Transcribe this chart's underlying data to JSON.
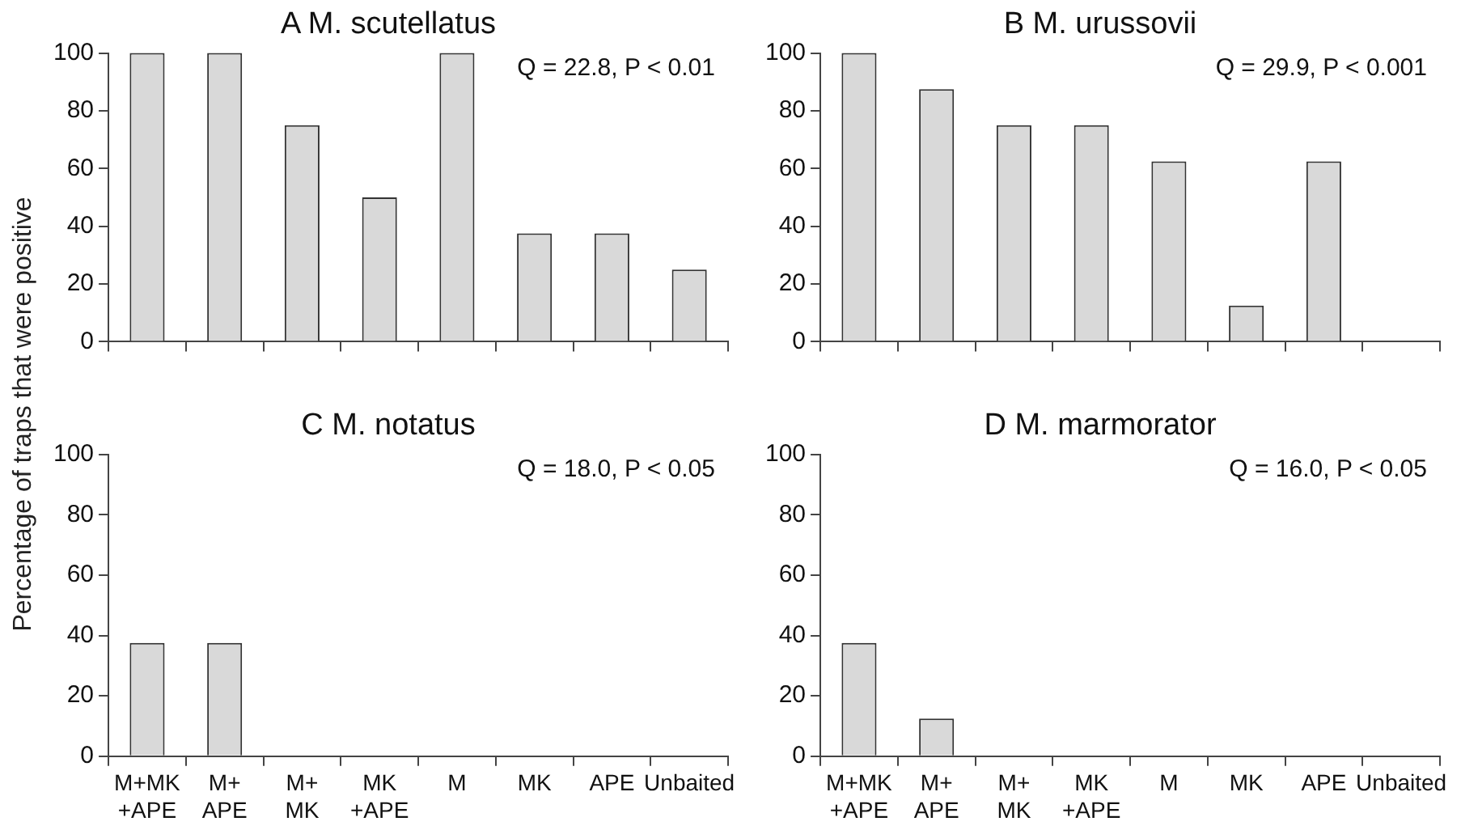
{
  "chart_data": [
    {
      "type": "bar",
      "title": "A M. scutellatus",
      "ylabel": "Percentage of traps that were positive",
      "categories": [
        null,
        null,
        null,
        null,
        null,
        null,
        null,
        null
      ],
      "values": [
        100,
        100,
        75,
        50,
        100,
        37.5,
        37.5,
        25
      ],
      "color": "#d9d9d9",
      "ylim": [
        0,
        100
      ],
      "yticks": [
        0,
        20,
        40,
        60,
        80,
        100
      ],
      "grid": false,
      "legend": false,
      "annotations": [
        "Q = 22.8, P < 0.01"
      ]
    },
    {
      "type": "bar",
      "title": "B M. urussovii",
      "categories": [
        null,
        null,
        null,
        null,
        null,
        null,
        null,
        null
      ],
      "values": [
        100,
        87.5,
        75,
        75,
        62.5,
        12.5,
        62.5,
        0
      ],
      "color": "#d9d9d9",
      "ylim": [
        0,
        100
      ],
      "yticks": [
        0,
        20,
        40,
        60,
        80,
        100
      ],
      "grid": false,
      "legend": false,
      "annotations": [
        "Q = 29.9, P < 0.001"
      ]
    },
    {
      "type": "bar",
      "title": "C M. notatus",
      "categories": [
        "M+MK +APE",
        "M+ APE",
        "M+ MK",
        "MK +APE",
        "M",
        "MK",
        "APE",
        "Unbaited"
      ],
      "values": [
        37.5,
        37.5,
        0,
        0,
        0,
        0,
        0,
        0
      ],
      "color": "#d9d9d9",
      "ylim": [
        0,
        100
      ],
      "yticks": [
        0,
        20,
        40,
        60,
        80,
        100
      ],
      "grid": false,
      "legend": false,
      "annotations": [
        "Q = 18.0, P < 0.05"
      ]
    },
    {
      "type": "bar",
      "title": "D M. marmorator",
      "categories": [
        "M+MK +APE",
        "M+ APE",
        "M+ MK",
        "MK +APE",
        "M",
        "MK",
        "APE",
        "Unbaited"
      ],
      "values": [
        37.5,
        12.5,
        0,
        0,
        0,
        0,
        0,
        0
      ],
      "color": "#d9d9d9",
      "ylim": [
        0,
        100
      ],
      "yticks": [
        0,
        20,
        40,
        60,
        80,
        100
      ],
      "grid": false,
      "legend": false,
      "annotations": [
        "Q = 16.0, P < 0.05"
      ]
    }
  ]
}
